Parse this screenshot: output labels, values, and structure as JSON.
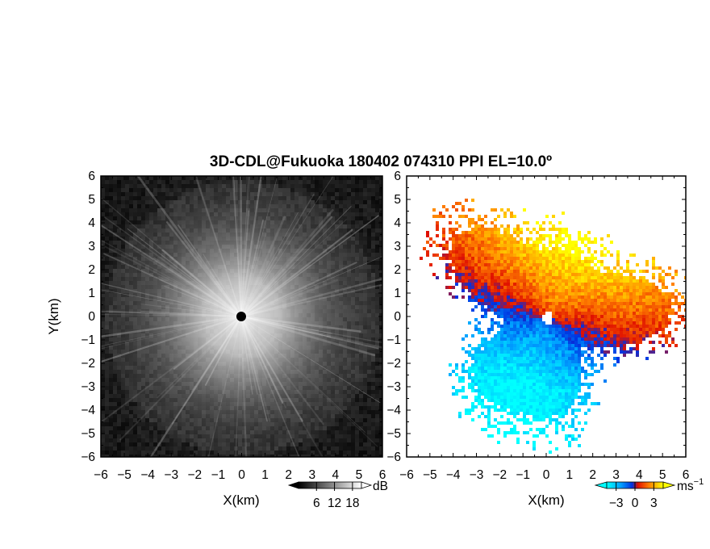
{
  "title": "3D-CDL@Fukuoka 180402 074310 PPI EL=10.0º",
  "chart_data": [
    {
      "type": "heatmap",
      "panel": "left",
      "xlabel": "X(km)",
      "ylabel": "Y(km)",
      "xlim": [
        -6,
        6
      ],
      "ylim": [
        -6,
        6
      ],
      "xticks": [
        "−6",
        "−5",
        "−4",
        "−3",
        "−2",
        "−1",
        "0",
        "1",
        "2",
        "3",
        "4",
        "5",
        "6"
      ],
      "yticks": [
        "6",
        "5",
        "4",
        "3",
        "2",
        "1",
        "0",
        "−1",
        "−2",
        "−3",
        "−4",
        "−5",
        "−6"
      ],
      "colormap": "grayscale",
      "colorbar": {
        "unit": "dB",
        "tick_labels": [
          "6",
          "12",
          "18"
        ],
        "ticks": [
          6,
          12,
          18
        ],
        "range": [
          0,
          21
        ],
        "colors": [
          "#000000",
          "#ffffff"
        ]
      },
      "description_values": {
        "radar_center": [
          0,
          0
        ],
        "max_range_km": 6.0,
        "pattern": "radial spokes, brightest near center"
      }
    },
    {
      "type": "heatmap",
      "panel": "right",
      "xlabel": "X(km)",
      "xlim": [
        -6,
        6
      ],
      "ylim": [
        -6,
        6
      ],
      "xticks": [
        "−6",
        "−5",
        "−4",
        "−3",
        "−2",
        "−1",
        "0",
        "1",
        "2",
        "3",
        "4",
        "5",
        "6"
      ],
      "yticks": [
        "6",
        "5",
        "4",
        "3",
        "2",
        "1",
        "0",
        "−1",
        "−2",
        "−3",
        "−4",
        "−5",
        "−6"
      ],
      "colormap": "diverging cyan-blue-red-yellow",
      "colorbar": {
        "unit": "ms",
        "unit_exponent": "−1",
        "tick_labels": [
          "−3",
          "0",
          "3"
        ],
        "ticks": [
          -3,
          0,
          3
        ],
        "range": [
          -4.5,
          4.5
        ],
        "colors": [
          "#00ffff",
          "#0040ff",
          "#ff2000",
          "#ffff00"
        ]
      },
      "description_values": {
        "radar_center": [
          0,
          0
        ],
        "positive_direction_deg": 70,
        "pattern": "Doppler dipole: negative west/southwest, positive north/east"
      }
    }
  ]
}
